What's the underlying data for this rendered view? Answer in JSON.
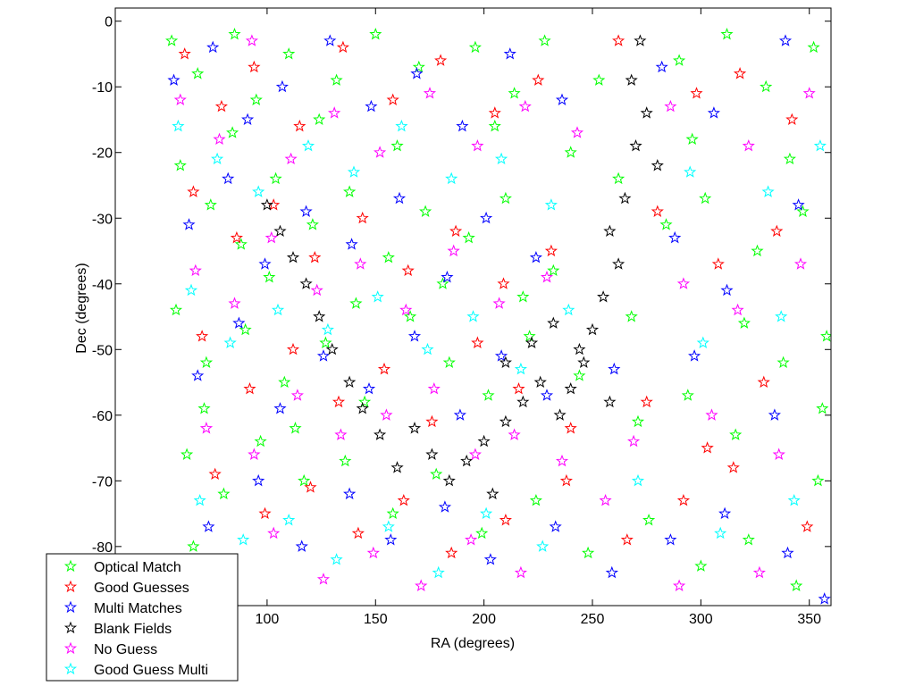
{
  "chart_data": {
    "type": "scatter",
    "title": "",
    "xlabel": "RA (degrees)",
    "ylabel": "Dec (degrees)",
    "xlim": [
      30,
      360
    ],
    "ylim": [
      -89,
      2
    ],
    "xticks": [
      100,
      150,
      200,
      250,
      300,
      350
    ],
    "yticks": [
      0,
      -10,
      -20,
      -30,
      -40,
      -50,
      -60,
      -70,
      -80
    ],
    "grid": false,
    "marker": "star",
    "legend_position": "bottom-left",
    "series": [
      {
        "name": "Optical Match",
        "color": "#00ff00",
        "values": [
          [
            56,
            -3
          ],
          [
            68,
            -8
          ],
          [
            85,
            -2
          ],
          [
            95,
            -12
          ],
          [
            110,
            -5
          ],
          [
            132,
            -9
          ],
          [
            150,
            -2
          ],
          [
            170,
            -7
          ],
          [
            196,
            -4
          ],
          [
            214,
            -11
          ],
          [
            228,
            -3
          ],
          [
            253,
            -9
          ],
          [
            290,
            -6
          ],
          [
            312,
            -2
          ],
          [
            330,
            -10
          ],
          [
            352,
            -4
          ],
          [
            60,
            -22
          ],
          [
            74,
            -28
          ],
          [
            88,
            -34
          ],
          [
            104,
            -24
          ],
          [
            121,
            -31
          ],
          [
            138,
            -26
          ],
          [
            156,
            -36
          ],
          [
            173,
            -29
          ],
          [
            193,
            -33
          ],
          [
            210,
            -27
          ],
          [
            232,
            -38
          ],
          [
            262,
            -24
          ],
          [
            284,
            -31
          ],
          [
            302,
            -27
          ],
          [
            326,
            -35
          ],
          [
            347,
            -29
          ],
          [
            58,
            -44
          ],
          [
            72,
            -52
          ],
          [
            90,
            -47
          ],
          [
            108,
            -55
          ],
          [
            127,
            -49
          ],
          [
            145,
            -58
          ],
          [
            166,
            -45
          ],
          [
            184,
            -52
          ],
          [
            202,
            -57
          ],
          [
            221,
            -48
          ],
          [
            244,
            -54
          ],
          [
            271,
            -61
          ],
          [
            294,
            -57
          ],
          [
            316,
            -63
          ],
          [
            338,
            -52
          ],
          [
            356,
            -59
          ],
          [
            63,
            -66
          ],
          [
            80,
            -72
          ],
          [
            97,
            -64
          ],
          [
            117,
            -70
          ],
          [
            136,
            -67
          ],
          [
            158,
            -75
          ],
          [
            178,
            -69
          ],
          [
            199,
            -78
          ],
          [
            224,
            -73
          ],
          [
            248,
            -81
          ],
          [
            276,
            -76
          ],
          [
            300,
            -83
          ],
          [
            322,
            -79
          ],
          [
            344,
            -86
          ],
          [
            354,
            -70
          ],
          [
            66,
            -80
          ],
          [
            84,
            -17
          ],
          [
            101,
            -39
          ],
          [
            124,
            -15
          ],
          [
            141,
            -43
          ],
          [
            160,
            -19
          ],
          [
            181,
            -40
          ],
          [
            205,
            -16
          ],
          [
            218,
            -42
          ],
          [
            240,
            -20
          ],
          [
            268,
            -45
          ],
          [
            296,
            -18
          ],
          [
            320,
            -46
          ],
          [
            341,
            -21
          ],
          [
            358,
            -48
          ],
          [
            71,
            -59
          ],
          [
            113,
            -62
          ]
        ]
      },
      {
        "name": "Good Guesses",
        "color": "#ff0000",
        "values": [
          [
            62,
            -5
          ],
          [
            79,
            -13
          ],
          [
            94,
            -7
          ],
          [
            115,
            -16
          ],
          [
            135,
            -4
          ],
          [
            158,
            -12
          ],
          [
            180,
            -6
          ],
          [
            205,
            -14
          ],
          [
            225,
            -9
          ],
          [
            262,
            -3
          ],
          [
            298,
            -11
          ],
          [
            318,
            -8
          ],
          [
            342,
            -15
          ],
          [
            66,
            -26
          ],
          [
            86,
            -33
          ],
          [
            103,
            -28
          ],
          [
            122,
            -36
          ],
          [
            144,
            -30
          ],
          [
            165,
            -38
          ],
          [
            187,
            -32
          ],
          [
            209,
            -40
          ],
          [
            231,
            -35
          ],
          [
            280,
            -29
          ],
          [
            308,
            -37
          ],
          [
            335,
            -32
          ],
          [
            70,
            -48
          ],
          [
            92,
            -56
          ],
          [
            112,
            -50
          ],
          [
            133,
            -58
          ],
          [
            154,
            -53
          ],
          [
            176,
            -61
          ],
          [
            197,
            -49
          ],
          [
            216,
            -56
          ],
          [
            240,
            -62
          ],
          [
            275,
            -58
          ],
          [
            303,
            -65
          ],
          [
            329,
            -55
          ],
          [
            76,
            -69
          ],
          [
            99,
            -75
          ],
          [
            120,
            -71
          ],
          [
            142,
            -78
          ],
          [
            163,
            -73
          ],
          [
            185,
            -81
          ],
          [
            210,
            -76
          ],
          [
            238,
            -70
          ],
          [
            266,
            -79
          ],
          [
            292,
            -73
          ],
          [
            315,
            -68
          ],
          [
            349,
            -77
          ]
        ]
      },
      {
        "name": "Multi Matches",
        "color": "#0000ff",
        "values": [
          [
            57,
            -9
          ],
          [
            75,
            -4
          ],
          [
            91,
            -15
          ],
          [
            107,
            -10
          ],
          [
            129,
            -3
          ],
          [
            148,
            -13
          ],
          [
            169,
            -8
          ],
          [
            190,
            -16
          ],
          [
            212,
            -5
          ],
          [
            236,
            -12
          ],
          [
            282,
            -7
          ],
          [
            306,
            -14
          ],
          [
            339,
            -3
          ],
          [
            64,
            -31
          ],
          [
            82,
            -24
          ],
          [
            99,
            -37
          ],
          [
            118,
            -29
          ],
          [
            139,
            -34
          ],
          [
            161,
            -27
          ],
          [
            183,
            -39
          ],
          [
            201,
            -30
          ],
          [
            224,
            -36
          ],
          [
            288,
            -33
          ],
          [
            312,
            -41
          ],
          [
            345,
            -28
          ],
          [
            68,
            -54
          ],
          [
            87,
            -46
          ],
          [
            106,
            -59
          ],
          [
            126,
            -51
          ],
          [
            147,
            -56
          ],
          [
            168,
            -48
          ],
          [
            189,
            -60
          ],
          [
            208,
            -51
          ],
          [
            229,
            -57
          ],
          [
            260,
            -53
          ],
          [
            297,
            -51
          ],
          [
            334,
            -60
          ],
          [
            73,
            -77
          ],
          [
            96,
            -70
          ],
          [
            116,
            -80
          ],
          [
            138,
            -72
          ],
          [
            157,
            -79
          ],
          [
            182,
            -74
          ],
          [
            203,
            -82
          ],
          [
            233,
            -77
          ],
          [
            259,
            -84
          ],
          [
            286,
            -79
          ],
          [
            311,
            -75
          ],
          [
            340,
            -81
          ],
          [
            357,
            -88
          ]
        ]
      },
      {
        "name": "Blank Fields",
        "color": "#000000",
        "values": [
          [
            272,
            -3
          ],
          [
            268,
            -9
          ],
          [
            275,
            -14
          ],
          [
            270,
            -19
          ],
          [
            280,
            -22
          ],
          [
            265,
            -27
          ],
          [
            258,
            -32
          ],
          [
            262,
            -37
          ],
          [
            255,
            -42
          ],
          [
            250,
            -47
          ],
          [
            246,
            -52
          ],
          [
            240,
            -56
          ],
          [
            235,
            -60
          ],
          [
            226,
            -55
          ],
          [
            218,
            -58
          ],
          [
            210,
            -61
          ],
          [
            200,
            -64
          ],
          [
            192,
            -67
          ],
          [
            184,
            -70
          ],
          [
            176,
            -66
          ],
          [
            168,
            -62
          ],
          [
            160,
            -68
          ],
          [
            152,
            -63
          ],
          [
            144,
            -59
          ],
          [
            138,
            -55
          ],
          [
            130,
            -50
          ],
          [
            124,
            -45
          ],
          [
            118,
            -40
          ],
          [
            112,
            -36
          ],
          [
            106,
            -32
          ],
          [
            100,
            -28
          ],
          [
            210,
            -52
          ],
          [
            222,
            -49
          ],
          [
            232,
            -46
          ],
          [
            244,
            -50
          ],
          [
            258,
            -58
          ],
          [
            204,
            -72
          ]
        ]
      },
      {
        "name": "No Guess",
        "color": "#ff00ff",
        "values": [
          [
            60,
            -12
          ],
          [
            78,
            -18
          ],
          [
            93,
            -3
          ],
          [
            111,
            -21
          ],
          [
            131,
            -14
          ],
          [
            152,
            -20
          ],
          [
            175,
            -11
          ],
          [
            197,
            -19
          ],
          [
            219,
            -13
          ],
          [
            243,
            -17
          ],
          [
            286,
            -13
          ],
          [
            322,
            -19
          ],
          [
            350,
            -11
          ],
          [
            67,
            -38
          ],
          [
            85,
            -43
          ],
          [
            102,
            -33
          ],
          [
            123,
            -41
          ],
          [
            143,
            -37
          ],
          [
            164,
            -44
          ],
          [
            186,
            -35
          ],
          [
            207,
            -43
          ],
          [
            229,
            -39
          ],
          [
            292,
            -40
          ],
          [
            317,
            -44
          ],
          [
            346,
            -37
          ],
          [
            72,
            -62
          ],
          [
            94,
            -66
          ],
          [
            114,
            -57
          ],
          [
            134,
            -63
          ],
          [
            155,
            -60
          ],
          [
            177,
            -56
          ],
          [
            196,
            -66
          ],
          [
            214,
            -63
          ],
          [
            236,
            -67
          ],
          [
            269,
            -64
          ],
          [
            305,
            -60
          ],
          [
            336,
            -66
          ],
          [
            79,
            -83
          ],
          [
            103,
            -78
          ],
          [
            126,
            -85
          ],
          [
            149,
            -81
          ],
          [
            171,
            -86
          ],
          [
            194,
            -79
          ],
          [
            217,
            -84
          ],
          [
            256,
            -73
          ],
          [
            290,
            -86
          ],
          [
            327,
            -84
          ]
        ]
      },
      {
        "name": "Good Guess Multi",
        "color": "#00ffff",
        "values": [
          [
            59,
            -16
          ],
          [
            77,
            -21
          ],
          [
            96,
            -26
          ],
          [
            119,
            -19
          ],
          [
            140,
            -23
          ],
          [
            162,
            -16
          ],
          [
            185,
            -24
          ],
          [
            208,
            -21
          ],
          [
            231,
            -28
          ],
          [
            295,
            -23
          ],
          [
            331,
            -26
          ],
          [
            355,
            -19
          ],
          [
            65,
            -41
          ],
          [
            83,
            -49
          ],
          [
            105,
            -44
          ],
          [
            128,
            -47
          ],
          [
            151,
            -42
          ],
          [
            174,
            -50
          ],
          [
            195,
            -45
          ],
          [
            217,
            -53
          ],
          [
            239,
            -44
          ],
          [
            301,
            -49
          ],
          [
            337,
            -45
          ],
          [
            69,
            -73
          ],
          [
            89,
            -79
          ],
          [
            110,
            -76
          ],
          [
            132,
            -82
          ],
          [
            156,
            -77
          ],
          [
            179,
            -84
          ],
          [
            201,
            -75
          ],
          [
            227,
            -80
          ],
          [
            271,
            -70
          ],
          [
            309,
            -78
          ],
          [
            343,
            -73
          ]
        ]
      }
    ]
  }
}
